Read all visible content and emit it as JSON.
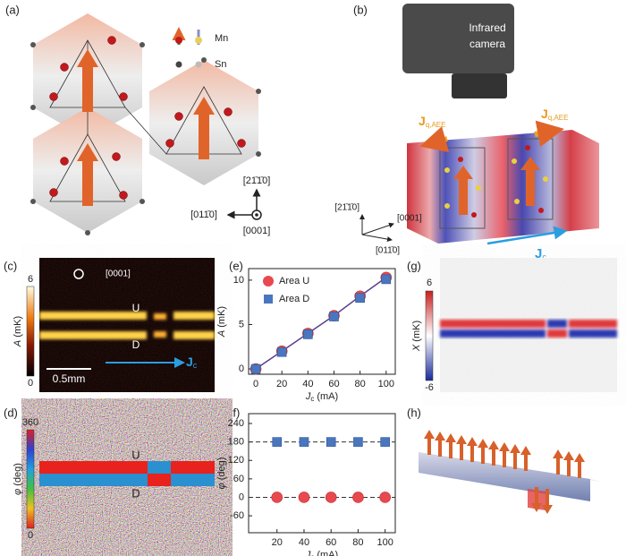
{
  "panels": [
    "(a)",
    "(b)",
    "(c)",
    "(d)",
    "(e)",
    "(f)",
    "(g)",
    "(h)"
  ],
  "a": {
    "legend": [
      "Mn",
      "Sn"
    ],
    "axes": [
      "[21̄1̄0]",
      "[011̄0]",
      "[0001]"
    ]
  },
  "b": {
    "camera": [
      "Infrared",
      "camera"
    ],
    "heat_flux": {
      "main": "J",
      "sub": "q,AEE"
    },
    "axes": [
      "[21̄1̄0]",
      "[0001]",
      "[011̄0]"
    ],
    "current": {
      "main": "J",
      "sub": "c"
    }
  },
  "c": {
    "colorbar": {
      "max": 6,
      "min": 0,
      "label": {
        "main": "A",
        "unit": "(mK)"
      }
    },
    "direction": "[0001]",
    "areas": [
      "U",
      "D"
    ],
    "scale": "0.5mm",
    "current": {
      "main": "J",
      "sub": "c"
    }
  },
  "d": {
    "colorbar": {
      "max": 360,
      "min": 0,
      "label": {
        "main": "φ",
        "unit": "(deg)"
      }
    },
    "areas": [
      "U",
      "D"
    ]
  },
  "g": {
    "colorbar": {
      "max": 6,
      "min": -6,
      "label": {
        "main": "X",
        "unit": "(mK)"
      }
    }
  },
  "chart_data": [
    {
      "type": "scatter",
      "x": [
        0,
        20,
        40,
        60,
        80,
        100
      ],
      "series": [
        {
          "name": "Area U",
          "color": "#e8494e",
          "marker": "circle",
          "values": [
            0,
            2,
            4,
            6,
            8.2,
            10.3
          ]
        },
        {
          "name": "Area D",
          "color": "#4a76bf",
          "marker": "square",
          "values": [
            0,
            1.9,
            3.9,
            5.9,
            8.0,
            10.1
          ]
        }
      ],
      "line_color": "#5b3f8f",
      "legend": "upper left",
      "xlabel": {
        "main": "J",
        "sub": "c",
        "unit": "(mA)"
      },
      "ylabel": {
        "main": "A",
        "unit": "(mK)"
      },
      "xlim": [
        -5.5,
        107
      ],
      "ylim": [
        -0.6,
        11.3
      ],
      "xticks": [
        0,
        20,
        40,
        60,
        80,
        100
      ],
      "yticks": [
        0,
        5,
        10
      ]
    },
    {
      "type": "scatter",
      "x": [
        20,
        40,
        60,
        80,
        100
      ],
      "series": [
        {
          "color": "#4a76bf",
          "marker": "square",
          "values": [
            180,
            180,
            180,
            180,
            180
          ]
        },
        {
          "color": "#e8494e",
          "marker": "circle",
          "values": [
            0,
            0,
            0,
            0,
            0
          ]
        }
      ],
      "reference_lines": [
        0,
        180
      ],
      "xlabel": {
        "main": "J",
        "sub": "c",
        "unit": "(mA)"
      },
      "ylabel": {
        "main": "φ",
        "unit": "(deg)"
      },
      "xlim": [
        -1,
        107.5
      ],
      "ylim": [
        -115,
        272
      ],
      "xticks": [
        20,
        40,
        60,
        80,
        100
      ],
      "yticks": [
        -60,
        0,
        60,
        120,
        180,
        240
      ]
    }
  ]
}
